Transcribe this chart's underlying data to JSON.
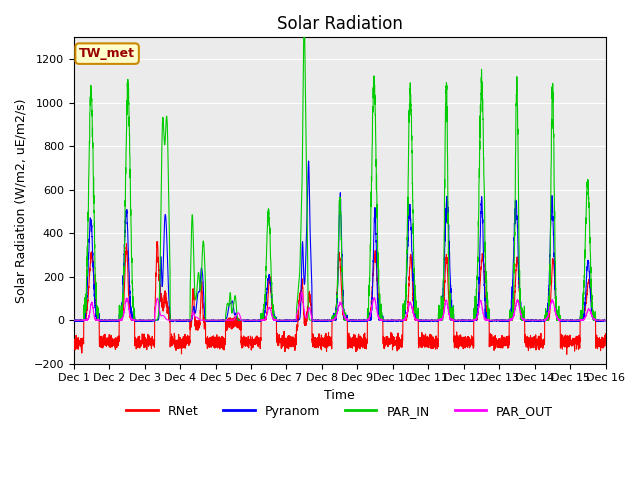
{
  "title": "Solar Radiation",
  "ylabel": "Solar Radiation (W/m2, uE/m2/s)",
  "xlabel": "Time",
  "ylim": [
    -200,
    1300
  ],
  "yticks": [
    -200,
    0,
    200,
    400,
    600,
    800,
    1000,
    1200
  ],
  "xlim": [
    0,
    15
  ],
  "xtick_labels": [
    "Dec 1",
    "Dec 2",
    "Dec 3",
    "Dec 4",
    "Dec 5",
    "Dec 6",
    "Dec 7",
    "Dec 8",
    "Dec 9",
    "Dec 10",
    "Dec 11",
    "Dec 12",
    "Dec 13",
    "Dec 14",
    "Dec 15",
    "Dec 16"
  ],
  "colors": {
    "RNet": "#ff0000",
    "Pyranom": "#0000ff",
    "PAR_IN": "#00cc00",
    "PAR_OUT": "#ff00ff"
  },
  "station_label": "TW_met",
  "station_box_facecolor": "#ffffcc",
  "station_box_edgecolor": "#cc8800",
  "background_color": "#ffffff",
  "plot_bg_color": "#ebebeb",
  "grid_color": "#ffffff",
  "title_fontsize": 12,
  "label_fontsize": 9,
  "tick_fontsize": 8,
  "n_days": 15,
  "ppd": 288,
  "day_peaks_PAR_IN": [
    1040,
    1060,
    1130,
    660,
    200,
    500,
    1110,
    540,
    1090,
    1050,
    1100,
    1090,
    1080,
    1080,
    640
  ],
  "day_peaks_Pyranom": [
    460,
    500,
    530,
    280,
    90,
    200,
    550,
    540,
    500,
    510,
    540,
    550,
    540,
    540,
    270
  ],
  "day_peaks_RNet": [
    300,
    330,
    340,
    200,
    50,
    200,
    330,
    300,
    300,
    300,
    290,
    290,
    280,
    280,
    180
  ],
  "day_peaks_PAR_OUT": [
    80,
    100,
    120,
    60,
    30,
    60,
    100,
    80,
    100,
    80,
    90,
    90,
    90,
    90,
    50
  ],
  "cloudy_days": [
    3,
    4,
    5,
    7
  ],
  "night_RNet_base": -100,
  "lw": 0.8
}
